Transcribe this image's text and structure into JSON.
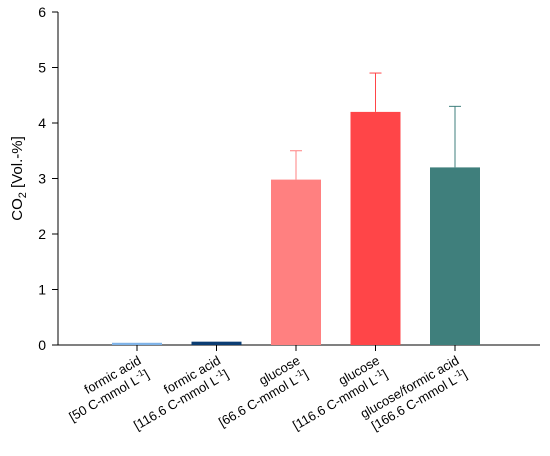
{
  "chart_data": {
    "type": "bar",
    "title": "",
    "xlabel": "",
    "ylabel": {
      "main": "CO",
      "sub": "2",
      "rest": " [Vol.-%]"
    },
    "ylim": [
      0,
      6
    ],
    "yticks": [
      "0",
      "1",
      "2",
      "3",
      "4",
      "5",
      "6"
    ],
    "grid": false,
    "categories": [
      {
        "line1": "formic acid",
        "line2_main": "[50 C-mmol L",
        "line2_sup": "-1",
        "line2_end": "]"
      },
      {
        "line1": "formic acid",
        "line2_main": "[116.6 C-mmol L",
        "line2_sup": "-1",
        "line2_end": "]"
      },
      {
        "line1": "glucose",
        "line2_main": "[66.6 C-mmol L",
        "line2_sup": "-1",
        "line2_end": "]"
      },
      {
        "line1": "glucose",
        "line2_main": "[116.6 C-mmol L",
        "line2_sup": "-1",
        "line2_end": "]"
      },
      {
        "line1": "glucose/formic acid",
        "line2_main": "[166.6 C-mmol L",
        "line2_sup": "-1",
        "line2_end": "]"
      }
    ],
    "values": [
      0.04,
      0.06,
      2.98,
      4.2,
      3.2
    ],
    "errors": [
      0,
      0,
      0.52,
      0.7,
      1.1
    ],
    "colors": [
      "#7fb3e8",
      "#0b3d73",
      "#ff8080",
      "#ff4548",
      "#3f7f7c"
    ]
  }
}
